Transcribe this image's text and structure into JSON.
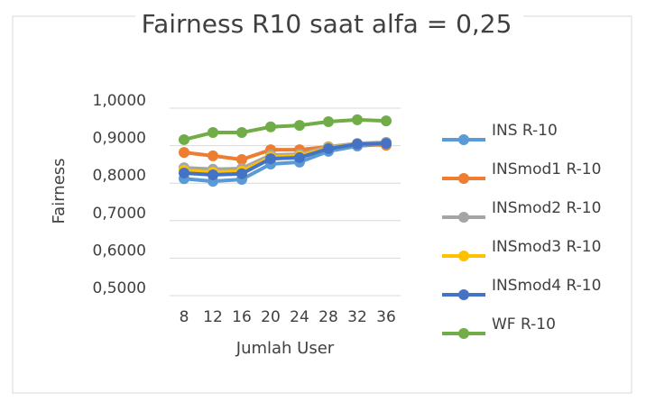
{
  "chart_data": {
    "type": "line",
    "title": "Fairness R10 saat alfa = 0,25",
    "xlabel": "Jumlah User",
    "ylabel": "Fairness",
    "categories": [
      "8",
      "12",
      "16",
      "20",
      "24",
      "28",
      "32",
      "36"
    ],
    "ylim": [
      0.5,
      1.0
    ],
    "yticks": [
      {
        "value": 0.5,
        "label": "0,5000"
      },
      {
        "value": 0.6,
        "label": "0,6000"
      },
      {
        "value": 0.7,
        "label": "0,7000"
      },
      {
        "value": 0.8,
        "label": "0,8000"
      },
      {
        "value": 0.9,
        "label": "0,9000"
      },
      {
        "value": 1.0,
        "label": "1,0000"
      }
    ],
    "grid": true,
    "legend": "right",
    "series": [
      {
        "name": "INS R-10",
        "color": "#5b9bd5",
        "values": [
          0.812,
          0.805,
          0.81,
          0.851,
          0.856,
          0.885,
          0.899,
          0.904
        ]
      },
      {
        "name": "INSmod1 R-10",
        "color": "#ed7d31",
        "values": [
          0.882,
          0.873,
          0.863,
          0.889,
          0.889,
          0.897,
          0.904,
          0.901
        ]
      },
      {
        "name": "INSmod2 R-10",
        "color": "#a5a5a5",
        "values": [
          0.841,
          0.837,
          0.839,
          0.875,
          0.877,
          0.897,
          0.906,
          0.909
        ]
      },
      {
        "name": "INSmod3 R-10",
        "color": "#ffc000",
        "values": [
          0.834,
          0.829,
          0.832,
          0.87,
          0.873,
          0.894,
          0.904,
          0.906
        ]
      },
      {
        "name": "INSmod4 R-10",
        "color": "#4472c4",
        "values": [
          0.827,
          0.822,
          0.825,
          0.865,
          0.868,
          0.892,
          0.904,
          0.906
        ]
      },
      {
        "name": "WF R-10",
        "color": "#70ad47",
        "values": [
          0.916,
          0.935,
          0.935,
          0.95,
          0.954,
          0.964,
          0.969,
          0.966
        ]
      }
    ]
  }
}
